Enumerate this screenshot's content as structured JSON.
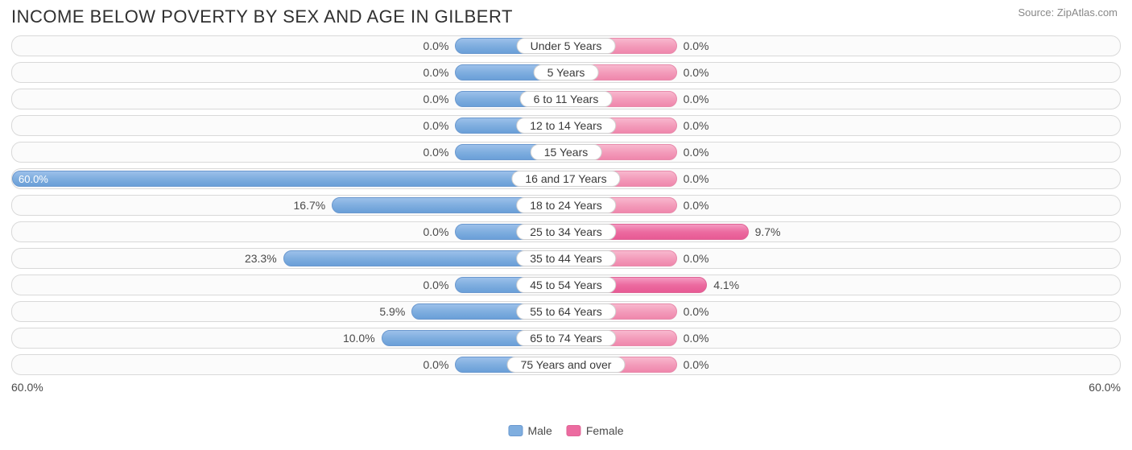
{
  "title": "INCOME BELOW POVERTY BY SEX AND AGE IN GILBERT",
  "source": "Source: ZipAtlas.com",
  "chart": {
    "type": "diverging-bar",
    "axis_max": 60.0,
    "min_bar_pct": 20.0,
    "male_color": "#7faedf",
    "male_border": "#6a98cf",
    "female_color": "#f39cbb",
    "female_nonzero_color": "#ec6ba0",
    "track_border": "#d9d9d9",
    "track_bg": "#fbfbfb",
    "background_color": "#ffffff",
    "label_fontsize": 14,
    "title_fontsize": 22,
    "title_color": "#303030",
    "source_color": "#888888",
    "text_color": "#4a4a4a",
    "axis_left_label": "60.0%",
    "axis_right_label": "60.0%",
    "legend": {
      "male": "Male",
      "female": "Female"
    },
    "rows": [
      {
        "category": "Under 5 Years",
        "male": 0.0,
        "female": 0.0
      },
      {
        "category": "5 Years",
        "male": 0.0,
        "female": 0.0
      },
      {
        "category": "6 to 11 Years",
        "male": 0.0,
        "female": 0.0
      },
      {
        "category": "12 to 14 Years",
        "male": 0.0,
        "female": 0.0
      },
      {
        "category": "15 Years",
        "male": 0.0,
        "female": 0.0
      },
      {
        "category": "16 and 17 Years",
        "male": 60.0,
        "female": 0.0
      },
      {
        "category": "18 to 24 Years",
        "male": 16.7,
        "female": 0.0
      },
      {
        "category": "25 to 34 Years",
        "male": 0.0,
        "female": 9.7
      },
      {
        "category": "35 to 44 Years",
        "male": 23.3,
        "female": 0.0
      },
      {
        "category": "45 to 54 Years",
        "male": 0.0,
        "female": 4.1
      },
      {
        "category": "55 to 64 Years",
        "male": 5.9,
        "female": 0.0
      },
      {
        "category": "65 to 74 Years",
        "male": 10.0,
        "female": 0.0
      },
      {
        "category": "75 Years and over",
        "male": 0.0,
        "female": 0.0
      }
    ]
  }
}
